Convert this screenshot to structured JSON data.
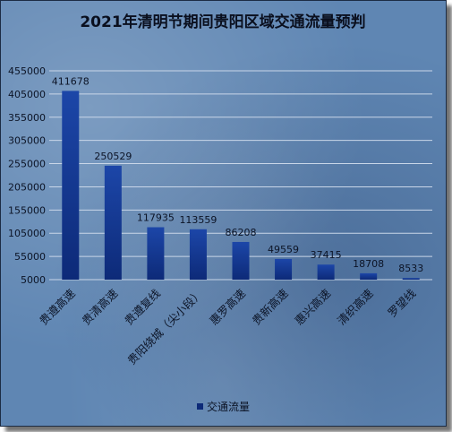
{
  "chart_data": {
    "type": "bar",
    "title": "2021年清明节期间贵阳区域交通流量预判",
    "categories": [
      "贵遵高速",
      "贵清高速",
      "贵遵复线",
      "贵阳绕城（尖小段）",
      "惠罗高速",
      "贵新高速",
      "惠兴高速",
      "清织高速",
      "罗望线"
    ],
    "series": [
      {
        "name": "交通流量",
        "values": [
          411678,
          250529,
          117935,
          113559,
          86208,
          49559,
          37415,
          18708,
          8533
        ]
      }
    ],
    "y_ticks": [
      5000,
      55000,
      105000,
      155000,
      205000,
      255000,
      305000,
      355000,
      405000,
      455000
    ],
    "ylim": [
      5000,
      455000
    ],
    "grid": true,
    "legend_position": "bottom",
    "colors": {
      "bar": "#0d2a78",
      "bar_light": "#1c46a8",
      "grid": "#c9d6e8"
    }
  }
}
